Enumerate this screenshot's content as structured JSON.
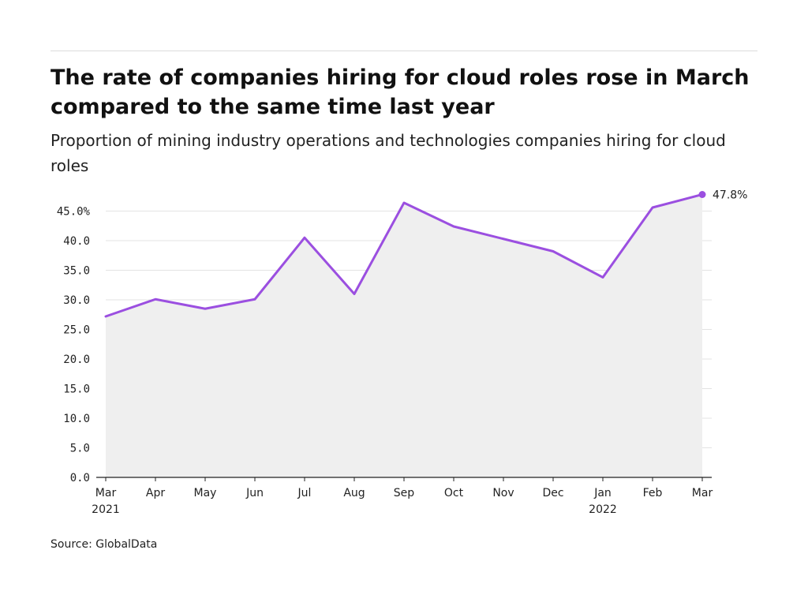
{
  "title": "The rate of companies hiring for cloud roles rose in March compared to the same time last year",
  "subtitle": "Proportion of mining industry operations and technologies companies hiring for cloud roles",
  "source": "Source: GlobalData",
  "colors": {
    "line": "#9b4fe0",
    "area": "#efefef",
    "grid": "#e3e3e3",
    "axis": "#222222"
  },
  "chart_data": {
    "type": "area",
    "title": "The rate of companies hiring for cloud roles rose in March compared to the same time last year",
    "subtitle": "Proportion of mining industry operations and technologies companies hiring for cloud roles",
    "xlabel": "",
    "ylabel": "",
    "categories": [
      "Mar 2021",
      "Apr 2021",
      "May 2021",
      "Jun 2021",
      "Jul 2021",
      "Aug 2021",
      "Sep 2021",
      "Oct 2021",
      "Nov 2021",
      "Dec 2021",
      "Jan 2022",
      "Feb 2022",
      "Mar 2022"
    ],
    "x_tick_labels": [
      {
        "month": "Mar",
        "year": "2021"
      },
      {
        "month": "Apr",
        "year": ""
      },
      {
        "month": "May",
        "year": ""
      },
      {
        "month": "Jun",
        "year": ""
      },
      {
        "month": "Jul",
        "year": ""
      },
      {
        "month": "Aug",
        "year": ""
      },
      {
        "month": "Sep",
        "year": ""
      },
      {
        "month": "Oct",
        "year": ""
      },
      {
        "month": "Nov",
        "year": ""
      },
      {
        "month": "Dec",
        "year": ""
      },
      {
        "month": "Jan",
        "year": "2022"
      },
      {
        "month": "Feb",
        "year": ""
      },
      {
        "month": "Mar",
        "year": ""
      }
    ],
    "values": [
      27.2,
      30.1,
      28.5,
      30.1,
      40.5,
      31.0,
      46.4,
      42.4,
      40.3,
      38.2,
      33.8,
      45.6,
      47.8
    ],
    "ylim": [
      0,
      50
    ],
    "y_ticks": [
      0,
      5,
      10,
      15,
      20,
      25,
      30,
      35,
      40,
      45
    ],
    "y_tick_labels": [
      "0.0",
      "5.0",
      "10.0",
      "15.0",
      "20.0",
      "25.0",
      "30.0",
      "35.0",
      "40.0",
      "45.0%"
    ],
    "end_label": "47.8%",
    "grid": true,
    "legend": "none"
  }
}
